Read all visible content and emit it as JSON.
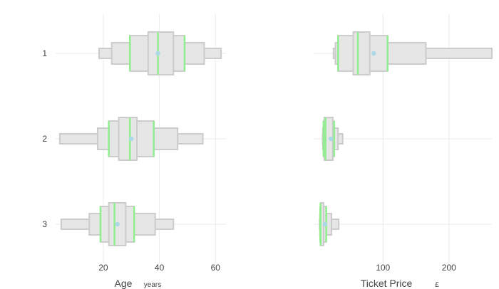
{
  "chart_data": [
    {
      "type": "letter-value boxplot",
      "categories": [
        "1",
        "2",
        "3"
      ],
      "xlabel": "Age",
      "xunit": "years",
      "xlim": [
        3,
        64
      ],
      "x_ticks": [
        20,
        40,
        60
      ],
      "grid": true,
      "series": [
        {
          "category": "1",
          "letter_values": [
            [
              18.5,
              62
            ],
            [
              23,
              56
            ],
            [
              29.5,
              49
            ],
            [
              36,
              45
            ]
          ],
          "median": 39.5,
          "mean": 39.5
        },
        {
          "category": "2",
          "letter_values": [
            [
              4.5,
              55.5
            ],
            [
              18,
              46.5
            ],
            [
              22,
              38
            ],
            [
              25.5,
              32
            ]
          ],
          "median": 29.5,
          "mean": 30
        },
        {
          "category": "3",
          "letter_values": [
            [
              5,
              45
            ],
            [
              15,
              38.5
            ],
            [
              19,
              31
            ],
            [
              22,
              28
            ]
          ],
          "median": 24,
          "mean": 25
        }
      ]
    },
    {
      "type": "letter-value boxplot",
      "categories": [
        "1",
        "2",
        "3"
      ],
      "xlabel": "Ticket Price",
      "xunit": "£",
      "xlim": [
        -5,
        265
      ],
      "x_ticks": [
        100,
        200
      ],
      "grid": true,
      "series": [
        {
          "category": "1",
          "letter_values": [
            [
              25,
              265
            ],
            [
              28,
              165
            ],
            [
              32,
              107
            ],
            [
              55,
              80
            ]
          ],
          "median": 62,
          "mean": 86
        },
        {
          "category": "2",
          "letter_values": [
            [
              8.5,
              39
            ],
            [
              9,
              32
            ],
            [
              10,
              26
            ],
            [
              11,
              24
            ]
          ],
          "median": 13,
          "mean": 21
        },
        {
          "category": "3",
          "letter_values": [
            [
              4,
              33
            ],
            [
              4.5,
              22
            ],
            [
              5,
              14
            ],
            [
              5.5,
              10
            ]
          ],
          "median": 5.5,
          "mean": 12
        }
      ]
    }
  ]
}
